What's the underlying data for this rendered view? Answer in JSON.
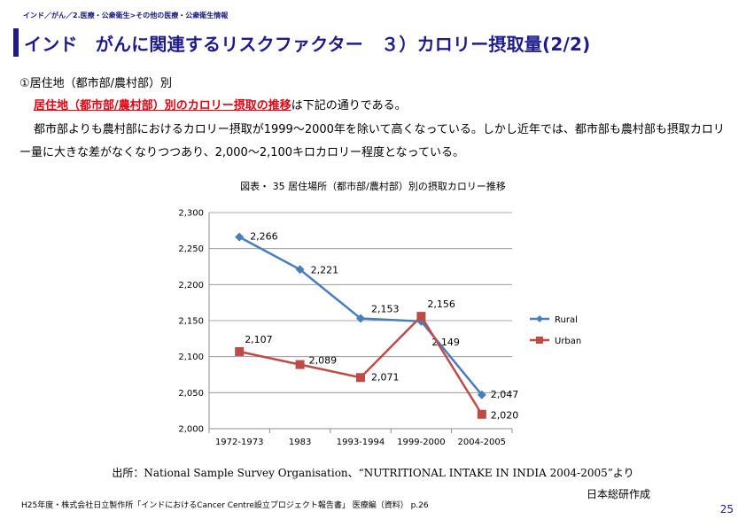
{
  "header": {
    "breadcrumb": "インド／がん／2.医療・公衆衛生>その他の医療・公衆衛生情報",
    "title": "インド　がんに関連するリスクファクター　３）カロリー摂取量(2/2)"
  },
  "body": {
    "section_heading": "①居住地（都市部/農村部）別",
    "highlight_text": "居住地（都市部/農村部）別のカロリー摂取の推移",
    "highlight_suffix": "は下記の通りである。",
    "paragraph": "都市部よりも農村部におけるカロリー摂取が1999～2000年を除いて高くなっている。しかし近年では、都市部も農村部も摂取カロリー量に大きな差がなくなりつつあり、2,000～2,100キロカロリー程度となっている。"
  },
  "chart_title": "図表・ 35  居住場所（都市部/農村部）別の摂取カロリー推移",
  "chart_data": {
    "type": "line",
    "categories": [
      "1972-1973",
      "1983",
      "1993-1994",
      "1999-2000",
      "2004-2005"
    ],
    "series": [
      {
        "name": "Rural",
        "values": [
          2266,
          2221,
          2153,
          2149,
          2047
        ],
        "labels": [
          "2,266",
          "2,221",
          "2,153",
          "2,149",
          "2,047"
        ],
        "color": "#4a7ebb",
        "marker": "diamond"
      },
      {
        "name": "Urban",
        "values": [
          2107,
          2089,
          2071,
          2156,
          2020
        ],
        "labels": [
          "2,107",
          "2,089",
          "2,071",
          "2,156",
          "2,020"
        ],
        "color": "#be4b48",
        "marker": "square"
      }
    ],
    "ylim": [
      2000,
      2300
    ],
    "yticks": [
      2000,
      2050,
      2100,
      2150,
      2200,
      2250,
      2300
    ],
    "ytick_labels": [
      "2,000",
      "2,050",
      "2,100",
      "2,150",
      "2,200",
      "2,250",
      "2,300"
    ],
    "grid": true,
    "legend_position": "right",
    "title": "",
    "xlabel": "",
    "ylabel": ""
  },
  "source": "出所：National Sample Survey Organisation、“NUTRITIONAL INTAKE IN INDIA 2004-2005”より",
  "maker": "日本総研作成",
  "footer": "H25年度・株式会社日立製作所「インドにおけるCancer Centre設立プロジェクト報告書」 医療編（資料） p.26",
  "page_number": "25"
}
